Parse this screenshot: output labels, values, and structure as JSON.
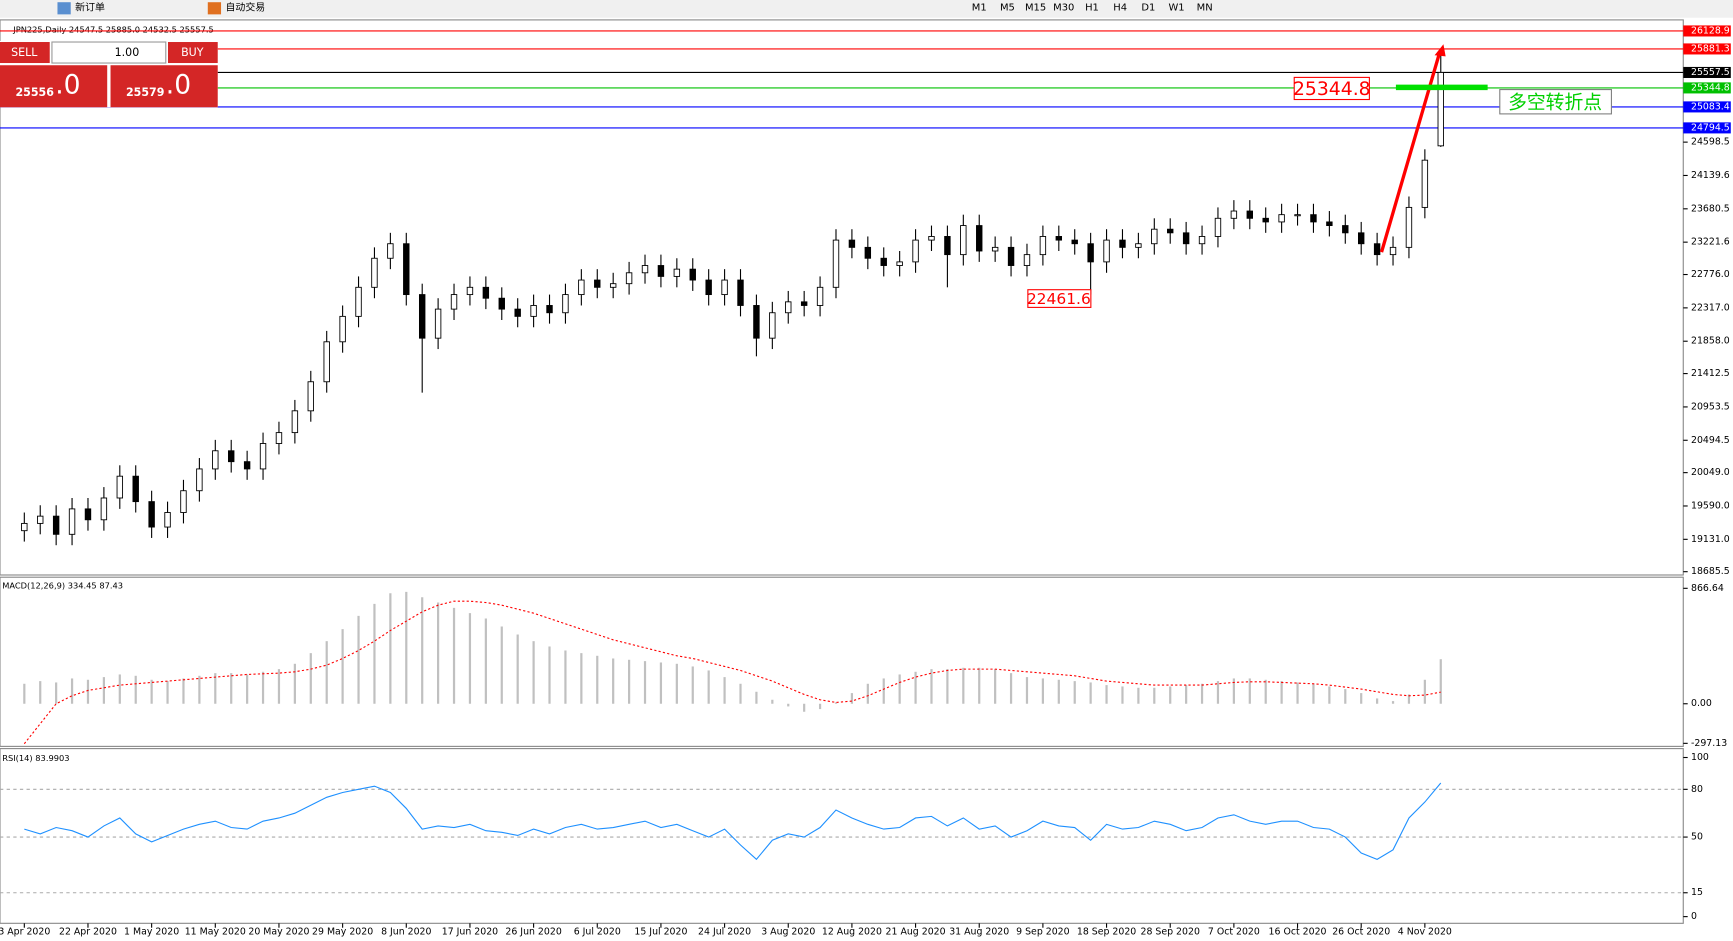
{
  "toolbar": {
    "new_order": "新订单",
    "auto_trading": "自动交易",
    "timeframes": [
      "M1",
      "M5",
      "M15",
      "M30",
      "H1",
      "H4",
      "D1",
      "W1",
      "MN"
    ]
  },
  "trade_panel": {
    "sell": "SELL",
    "buy": "BUY",
    "lot": "1.00",
    "sell_price": "25556",
    "sell_fraction": ".0",
    "buy_price": "25579",
    "buy_fraction": ".0"
  },
  "chart_data": [
    {
      "type": "candlestick",
      "title": "JPN225,Daily  24547.5 25885.0 24532.5 25557.5",
      "categories": [
        "3 Apr 2020",
        null,
        null,
        null,
        "22 Apr 2020",
        null,
        null,
        null,
        "1 May 2020",
        null,
        null,
        null,
        "11 May 2020",
        null,
        null,
        null,
        "20 May 2020",
        null,
        null,
        null,
        "29 May 2020",
        null,
        null,
        null,
        "8 Jun 2020",
        null,
        null,
        null,
        "17 Jun 2020",
        null,
        null,
        null,
        "26 Jun 2020",
        null,
        null,
        null,
        "6 Jul 2020",
        null,
        null,
        null,
        "15 Jul 2020",
        null,
        null,
        null,
        "24 Jul 2020",
        null,
        null,
        null,
        "3 Aug 2020",
        null,
        null,
        null,
        "12 Aug 2020",
        null,
        null,
        null,
        "21 Aug 2020",
        null,
        null,
        null,
        "31 Aug 2020",
        null,
        null,
        null,
        "9 Sep 2020",
        null,
        null,
        null,
        "18 Sep 2020",
        null,
        null,
        null,
        "28 Sep 2020",
        null,
        null,
        null,
        "7 Oct 2020",
        null,
        null,
        null,
        "16 Oct 2020",
        null,
        null,
        null,
        "26 Oct 2020",
        null,
        null,
        null,
        "4 Nov 2020",
        null
      ],
      "open": [
        19250,
        19350,
        19450,
        19200,
        19550,
        19400,
        19700,
        20000,
        19650,
        19300,
        19500,
        19800,
        20100,
        20350,
        20200,
        20100,
        20450,
        20600,
        20900,
        21300,
        21850,
        22200,
        22600,
        23000,
        23200,
        22500,
        21900,
        22300,
        22500,
        22600,
        22450,
        22300,
        22200,
        22350,
        22250,
        22500,
        22700,
        22600,
        22650,
        22800,
        22900,
        22750,
        22850,
        22700,
        22500,
        22700,
        22350,
        21900,
        22250,
        22400,
        22350,
        22600,
        23250,
        23150,
        23000,
        22900,
        22950,
        23250,
        23300,
        23050,
        23450,
        23100,
        23150,
        22900,
        23050,
        23300,
        23250,
        23200,
        22950,
        23250,
        23150,
        23200,
        23400,
        23350,
        23200,
        23300,
        23550,
        23650,
        23550,
        23500,
        23600,
        23600,
        23500,
        23450,
        23350,
        23200,
        23050,
        23150,
        23700,
        24547.5
      ],
      "high": [
        19500,
        19600,
        19600,
        19700,
        19700,
        19850,
        20150,
        20150,
        19800,
        19650,
        19950,
        20250,
        20500,
        20500,
        20350,
        20600,
        20750,
        21050,
        21450,
        22000,
        22350,
        22750,
        23150,
        23350,
        23350,
        22650,
        22450,
        22650,
        22750,
        22750,
        22600,
        22450,
        22500,
        22500,
        22650,
        22850,
        22850,
        22800,
        22950,
        23050,
        23050,
        23000,
        23000,
        22850,
        22850,
        22850,
        22500,
        22400,
        22550,
        22550,
        22750,
        23400,
        23400,
        23300,
        23150,
        23100,
        23400,
        23450,
        23450,
        23600,
        23600,
        23300,
        23300,
        23200,
        23450,
        23450,
        23400,
        23350,
        23400,
        23400,
        23350,
        23550,
        23550,
        23500,
        23450,
        23700,
        23800,
        23800,
        23700,
        23750,
        23750,
        23750,
        23650,
        23600,
        23500,
        23350,
        23300,
        23850,
        24500,
        25885
      ],
      "low": [
        19100,
        19200,
        19050,
        19050,
        19250,
        19250,
        19550,
        19500,
        19150,
        19150,
        19350,
        19650,
        19950,
        20050,
        19950,
        19950,
        20300,
        20450,
        20750,
        21150,
        21700,
        22050,
        22450,
        22850,
        22350,
        21150,
        21750,
        22150,
        22350,
        22300,
        22150,
        22050,
        22050,
        22100,
        22100,
        22350,
        22450,
        22450,
        22500,
        22650,
        22600,
        22600,
        22550,
        22350,
        22350,
        22200,
        21650,
        21750,
        22100,
        22200,
        22200,
        22450,
        23000,
        22850,
        22750,
        22750,
        22800,
        23100,
        22600,
        22900,
        22950,
        22950,
        22750,
        22750,
        22900,
        23100,
        23050,
        22500,
        22800,
        23000,
        23000,
        23050,
        23200,
        23050,
        23050,
        23150,
        23400,
        23400,
        23350,
        23350,
        23450,
        23350,
        23300,
        23200,
        23050,
        22900,
        22900,
        23000,
        23550,
        24532.5
      ],
      "close": [
        19350,
        19450,
        19200,
        19550,
        19400,
        19700,
        20000,
        19650,
        19300,
        19500,
        19800,
        20100,
        20350,
        20200,
        20100,
        20450,
        20600,
        20900,
        21300,
        21850,
        22200,
        22600,
        23000,
        23200,
        22500,
        21900,
        22300,
        22500,
        22600,
        22450,
        22300,
        22200,
        22350,
        22250,
        22500,
        22700,
        22600,
        22650,
        22800,
        22900,
        22750,
        22850,
        22700,
        22500,
        22700,
        22350,
        21900,
        22250,
        22400,
        22350,
        22600,
        23250,
        23150,
        23000,
        22900,
        22950,
        23250,
        23300,
        23050,
        23450,
        23100,
        23150,
        22900,
        23050,
        23300,
        23250,
        23200,
        22950,
        23250,
        23150,
        23200,
        23400,
        23350,
        23200,
        23300,
        23550,
        23650,
        23550,
        23500,
        23600,
        23600,
        23500,
        23450,
        23350,
        23200,
        23050,
        23150,
        23700,
        24350,
        25557.5
      ],
      "bull_color": "#ffffff",
      "bear_color": "#000000",
      "ylim": [
        18640,
        26281
      ],
      "yticks": [
        24598.5,
        24139.6,
        {
          "value": 23680.5,
          "label": "23680.5"
        },
        23221.6,
        {
          "value": 22776,
          "label": "22776.0"
        },
        {
          "value": 22317,
          "label": "22317.0"
        },
        {
          "value": 21858,
          "label": "21858.0"
        },
        21412.5,
        20953.5,
        20494.5,
        {
          "value": 20049,
          "label": "20049.0"
        },
        {
          "value": 19590,
          "label": "19590.0"
        },
        {
          "value": 19131,
          "label": "19131.0"
        },
        18685.5
      ],
      "levels": [
        {
          "value": 26128.9,
          "color": "#ff0000"
        },
        {
          "value": 25881.3,
          "color": "#ff0000"
        },
        {
          "value": 25557.5,
          "color": "#000000"
        },
        {
          "value": 25344.8,
          "color": "#00c000"
        },
        {
          "value": 25083.4,
          "color": "#0000ff"
        },
        {
          "value": 24794.5,
          "color": "#0000ff"
        }
      ],
      "annotations": [
        "25344.8",
        "22461.6",
        "多空转折点"
      ]
    },
    {
      "type": "macd",
      "title": "MACD(12,26,9) 334.45 87.43",
      "histogram": {
        "color": "#c0c0c0",
        "values": [
          150,
          170,
          160,
          190,
          180,
          200,
          220,
          210,
          180,
          170,
          190,
          210,
          230,
          230,
          220,
          240,
          260,
          300,
          380,
          470,
          560,
          660,
          750,
          830,
          840,
          800,
          760,
          720,
          680,
          640,
          580,
          520,
          470,
          430,
          400,
          380,
          360,
          340,
          330,
          320,
          310,
          300,
          280,
          250,
          200,
          150,
          90,
          30,
          -20,
          -60,
          -40,
          10,
          80,
          150,
          190,
          220,
          240,
          260,
          260,
          270,
          270,
          260,
          230,
          200,
          190,
          180,
          170,
          160,
          140,
          130,
          120,
          120,
          130,
          140,
          150,
          170,
          190,
          190,
          180,
          170,
          160,
          150,
          130,
          110,
          80,
          40,
          20,
          70,
          180,
          334.45
        ]
      },
      "signal": {
        "color": "#ff0000",
        "values": [
          -300,
          -150,
          0,
          60,
          100,
          120,
          140,
          150,
          160,
          170,
          180,
          190,
          200,
          210,
          220,
          225,
          230,
          240,
          260,
          290,
          340,
          400,
          470,
          550,
          620,
          690,
          740,
          770,
          770,
          760,
          740,
          710,
          680,
          640,
          600,
          560,
          520,
          480,
          450,
          420,
          390,
          360,
          340,
          310,
          280,
          250,
          210,
          170,
          120,
          70,
          30,
          10,
          20,
          60,
          110,
          160,
          200,
          230,
          250,
          260,
          260,
          260,
          250,
          240,
          230,
          220,
          210,
          190,
          170,
          160,
          150,
          140,
          140,
          140,
          140,
          150,
          160,
          165,
          165,
          160,
          155,
          150,
          140,
          125,
          110,
          90,
          70,
          60,
          65,
          87.43
        ]
      },
      "ylim": [
        -320,
        950
      ],
      "yticks": [
        866.64,
        {
          "value": 0,
          "label": "0.00"
        },
        -297.13
      ]
    },
    {
      "type": "line",
      "title": "RSI(14) 83.9903",
      "color": "#1e90ff",
      "values": [
        55,
        52,
        56,
        54,
        50,
        57,
        62,
        52,
        47,
        51,
        55,
        58,
        60,
        56,
        55,
        60,
        62,
        65,
        70,
        75,
        78,
        80,
        82,
        78,
        68,
        55,
        57,
        56,
        58,
        54,
        53,
        51,
        55,
        52,
        56,
        58,
        55,
        56,
        58,
        60,
        56,
        58,
        54,
        50,
        55,
        45,
        36,
        48,
        52,
        50,
        56,
        67,
        62,
        58,
        55,
        56,
        62,
        63,
        57,
        62,
        55,
        57,
        50,
        54,
        60,
        57,
        56,
        48,
        58,
        55,
        56,
        60,
        58,
        54,
        56,
        62,
        64,
        60,
        58,
        60,
        60,
        56,
        55,
        50,
        40,
        36,
        42,
        62,
        72,
        83.99
      ],
      "ylim": [
        -4.2,
        105.6
      ],
      "yticks": [
        100,
        80,
        50,
        15,
        0
      ],
      "levels": [
        80,
        50,
        15
      ]
    }
  ]
}
